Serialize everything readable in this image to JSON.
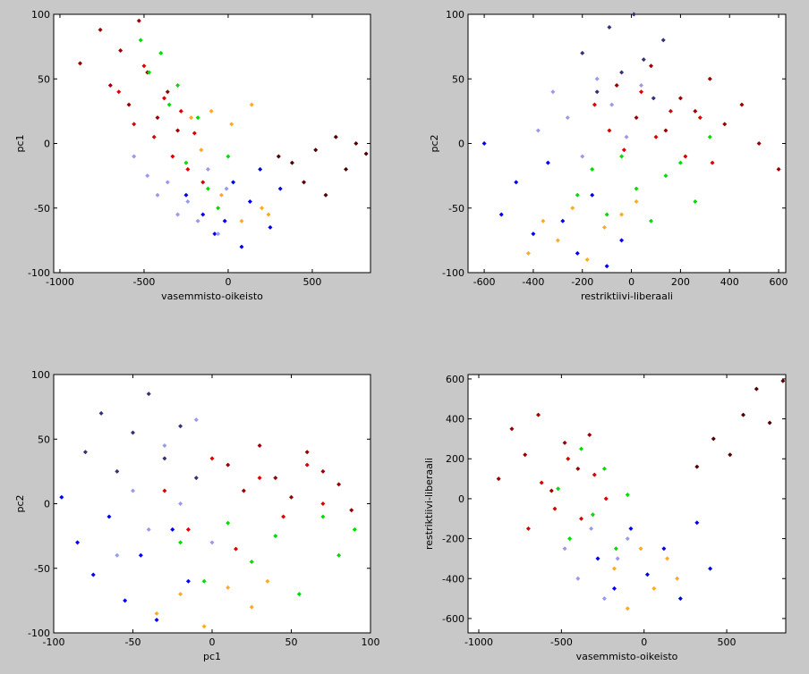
{
  "chart_data": [
    {
      "type": "scatter",
      "xlabel": "vasemmisto-oikeisto",
      "ylabel": "pc1",
      "xlim": [
        -1037,
        846
      ],
      "ylim": [
        -100,
        100
      ],
      "xticks": [
        -1000,
        -500,
        0,
        500
      ],
      "yticks": [
        -100,
        -50,
        0,
        50,
        100
      ],
      "series": [
        {
          "color": "#990000",
          "x": [
            -880,
            -760,
            -700,
            -640,
            -590,
            -530,
            -480,
            -420,
            -360,
            -300
          ],
          "y": [
            62,
            88,
            45,
            72,
            30,
            95,
            55,
            20,
            40,
            10
          ]
        },
        {
          "color": "#dd0000",
          "x": [
            -650,
            -560,
            -500,
            -440,
            -380,
            -330,
            -280,
            -240,
            -200,
            -150
          ],
          "y": [
            40,
            15,
            60,
            5,
            35,
            -10,
            25,
            -20,
            8,
            -30
          ]
        },
        {
          "color": "#00dd00",
          "x": [
            -520,
            -470,
            -400,
            -350,
            -300,
            -250,
            -180,
            -120,
            -60,
            0
          ],
          "y": [
            80,
            55,
            70,
            30,
            45,
            -15,
            20,
            -35,
            -50,
            -10
          ]
        },
        {
          "color": "#0000ee",
          "x": [
            -250,
            -150,
            -80,
            -20,
            30,
            80,
            130,
            190,
            250,
            310
          ],
          "y": [
            -40,
            -55,
            -70,
            -60,
            -30,
            -80,
            -45,
            -20,
            -65,
            -35
          ]
        },
        {
          "color": "#9999ee",
          "x": [
            -560,
            -480,
            -420,
            -360,
            -300,
            -240,
            -180,
            -120,
            -60,
            -10
          ],
          "y": [
            -10,
            -25,
            -40,
            -30,
            -55,
            -45,
            -60,
            -20,
            -70,
            -35
          ]
        },
        {
          "color": "#ffaa22",
          "x": [
            -220,
            -160,
            -100,
            -40,
            20,
            80,
            140,
            200,
            240
          ],
          "y": [
            20,
            -5,
            25,
            -40,
            15,
            -60,
            30,
            -50,
            -55
          ]
        },
        {
          "color": "#550000",
          "x": [
            300,
            380,
            450,
            520,
            580,
            640,
            700,
            760,
            820
          ],
          "y": [
            -10,
            -15,
            -30,
            -5,
            -40,
            5,
            -20,
            0,
            -8
          ]
        }
      ]
    },
    {
      "type": "scatter",
      "xlabel": "restriktiivi-liberaali",
      "ylabel": "pc2",
      "xlim": [
        -666,
        629
      ],
      "ylim": [
        -100,
        100
      ],
      "xticks": [
        -600,
        -400,
        -200,
        0,
        200,
        400,
        600
      ],
      "yticks": [
        -100,
        -50,
        0,
        50,
        100
      ],
      "series": [
        {
          "color": "#990000",
          "x": [
            -60,
            20,
            80,
            140,
            200,
            260,
            320,
            380,
            450,
            520,
            600
          ],
          "y": [
            45,
            20,
            60,
            10,
            35,
            25,
            50,
            15,
            30,
            0,
            -20
          ]
        },
        {
          "color": "#dd0000",
          "x": [
            -150,
            -90,
            -30,
            40,
            100,
            160,
            220,
            280,
            330
          ],
          "y": [
            30,
            10,
            -5,
            40,
            5,
            25,
            -10,
            20,
            -15
          ]
        },
        {
          "color": "#00dd00",
          "x": [
            -220,
            -160,
            -100,
            -40,
            20,
            80,
            140,
            200,
            260,
            320
          ],
          "y": [
            -40,
            -20,
            -55,
            -10,
            -35,
            -60,
            -25,
            -15,
            -45,
            5
          ]
        },
        {
          "color": "#0000ee",
          "x": [
            -600,
            -530,
            -470,
            -400,
            -340,
            -280,
            -220,
            -160,
            -100,
            -40
          ],
          "y": [
            0,
            -55,
            -30,
            -70,
            -15,
            -60,
            -85,
            -40,
            -95,
            -75
          ]
        },
        {
          "color": "#333377",
          "x": [
            -200,
            -140,
            -90,
            -40,
            10,
            50,
            90,
            130
          ],
          "y": [
            70,
            40,
            90,
            55,
            100,
            65,
            35,
            80
          ]
        },
        {
          "color": "#9999ee",
          "x": [
            -380,
            -320,
            -260,
            -200,
            -140,
            -80,
            -20,
            40
          ],
          "y": [
            10,
            40,
            20,
            -10,
            50,
            30,
            5,
            45
          ]
        },
        {
          "color": "#ffaa22",
          "x": [
            -420,
            -360,
            -300,
            -240,
            -180,
            -110,
            -40,
            20
          ],
          "y": [
            -85,
            -60,
            -75,
            -50,
            -90,
            -65,
            -55,
            -45
          ]
        }
      ]
    },
    {
      "type": "scatter",
      "xlabel": "pc1",
      "ylabel": "pc2",
      "xlim": [
        -100,
        100
      ],
      "ylim": [
        -100,
        100
      ],
      "xticks": [
        -100,
        -50,
        0,
        50,
        100
      ],
      "yticks": [
        -100,
        -50,
        0,
        50,
        100
      ],
      "series": [
        {
          "color": "#990000",
          "x": [
            10,
            20,
            30,
            40,
            50,
            60,
            70,
            80,
            88
          ],
          "y": [
            30,
            10,
            45,
            20,
            5,
            40,
            25,
            15,
            -5
          ]
        },
        {
          "color": "#dd0000",
          "x": [
            -30,
            -15,
            0,
            15,
            30,
            45,
            60,
            70
          ],
          "y": [
            10,
            -20,
            35,
            -35,
            20,
            -10,
            30,
            0
          ]
        },
        {
          "color": "#00dd00",
          "x": [
            -20,
            -5,
            10,
            25,
            40,
            55,
            70,
            80,
            90
          ],
          "y": [
            -30,
            -60,
            -15,
            -45,
            -25,
            -70,
            -10,
            -40,
            -20
          ]
        },
        {
          "color": "#0000ee",
          "x": [
            -95,
            -85,
            -75,
            -65,
            -55,
            -45,
            -35,
            -25,
            -15
          ],
          "y": [
            5,
            -30,
            -55,
            -10,
            -75,
            -40,
            -90,
            -20,
            -60
          ]
        },
        {
          "color": "#333377",
          "x": [
            -80,
            -70,
            -60,
            -50,
            -40,
            -30,
            -20,
            -10
          ],
          "y": [
            40,
            70,
            25,
            55,
            85,
            35,
            60,
            20
          ]
        },
        {
          "color": "#9999ee",
          "x": [
            -60,
            -50,
            -40,
            -30,
            -20,
            -10,
            0
          ],
          "y": [
            -40,
            10,
            -20,
            45,
            0,
            65,
            -30
          ]
        },
        {
          "color": "#ffaa22",
          "x": [
            -35,
            -20,
            -5,
            10,
            25,
            35
          ],
          "y": [
            -85,
            -70,
            -95,
            -65,
            -80,
            -60
          ]
        }
      ]
    },
    {
      "type": "scatter",
      "xlabel": "vasemmisto-oikeisto",
      "ylabel": "restriktiivi-liberaali",
      "xlim": [
        -1065,
        857
      ],
      "ylim": [
        -672,
        622
      ],
      "xticks": [
        -1000,
        -500,
        0,
        500
      ],
      "yticks": [
        -600,
        -400,
        -200,
        0,
        200,
        400,
        600
      ],
      "series": [
        {
          "color": "#990000",
          "x": [
            -880,
            -800,
            -720,
            -640,
            -560,
            -480,
            -400,
            -330
          ],
          "y": [
            100,
            350,
            220,
            420,
            40,
            280,
            150,
            320
          ]
        },
        {
          "color": "#dd0000",
          "x": [
            -700,
            -620,
            -540,
            -460,
            -380,
            -300,
            -230
          ],
          "y": [
            -150,
            80,
            -50,
            200,
            -100,
            120,
            0
          ]
        },
        {
          "color": "#00dd00",
          "x": [
            -520,
            -450,
            -380,
            -310,
            -240,
            -170,
            -100
          ],
          "y": [
            50,
            -200,
            250,
            -80,
            150,
            -250,
            20
          ]
        },
        {
          "color": "#0000ee",
          "x": [
            -280,
            -180,
            -80,
            20,
            120,
            220,
            320,
            400
          ],
          "y": [
            -300,
            -450,
            -150,
            -380,
            -250,
            -500,
            -120,
            -350
          ]
        },
        {
          "color": "#9999ee",
          "x": [
            -480,
            -400,
            -320,
            -240,
            -160,
            -100
          ],
          "y": [
            -250,
            -400,
            -150,
            -500,
            -300,
            -200
          ]
        },
        {
          "color": "#ffaa22",
          "x": [
            -180,
            -100,
            -20,
            60,
            140,
            200
          ],
          "y": [
            -350,
            -550,
            -250,
            -450,
            -300,
            -400
          ]
        },
        {
          "color": "#550000",
          "x": [
            320,
            420,
            520,
            600,
            680,
            760,
            840
          ],
          "y": [
            160,
            300,
            220,
            420,
            550,
            380,
            590
          ]
        }
      ]
    }
  ]
}
